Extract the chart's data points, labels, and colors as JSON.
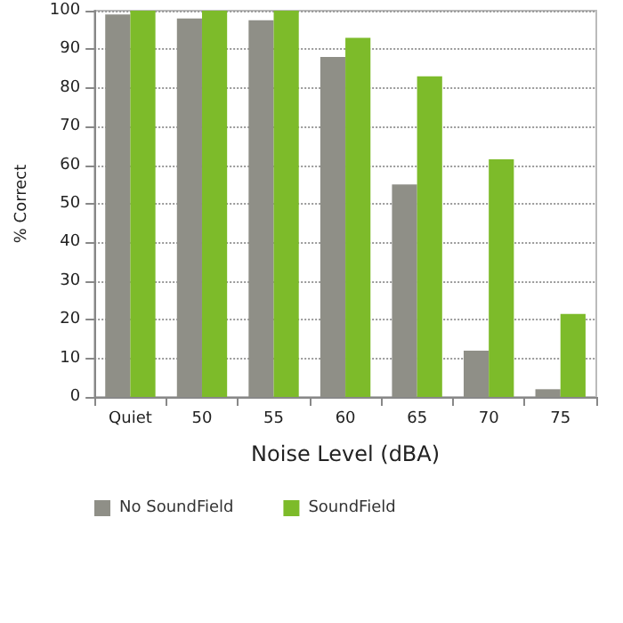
{
  "chart_data": {
    "type": "bar",
    "xlabel": "Noise Level (dBA)",
    "ylabel": "% Correct",
    "categories": [
      "Quiet",
      "50",
      "55",
      "60",
      "65",
      "70",
      "75"
    ],
    "series": [
      {
        "name": "No SoundField",
        "color": "#8f8f87",
        "values": [
          99,
          98,
          97.5,
          88,
          55,
          12,
          2
        ]
      },
      {
        "name": "SoundField",
        "color": "#7dbb2a",
        "values": [
          100,
          100,
          100,
          93,
          83,
          61.5,
          21.5
        ]
      }
    ],
    "ylim": [
      0,
      100
    ],
    "yticks": [
      0,
      10,
      20,
      30,
      40,
      50,
      60,
      70,
      80,
      90,
      100
    ],
    "grid": "y",
    "legend": "bottom left"
  }
}
